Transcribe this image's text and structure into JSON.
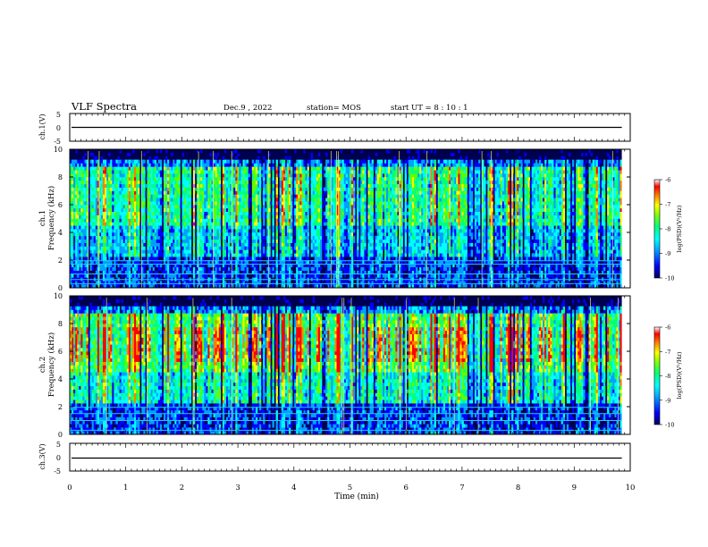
{
  "header": {
    "title": "VLF Spectra",
    "date": "Dec.9 , 2022",
    "station": "station= MOS",
    "start": "start UT = 8 : 10 : 1"
  },
  "chart_data": [
    {
      "type": "line",
      "ylabel": "ch.1(V)",
      "yticks": [
        "5",
        "0",
        "-5"
      ],
      "ylim": [
        -5,
        5
      ],
      "x": [
        0,
        9.85
      ],
      "y": [
        0,
        0
      ]
    },
    {
      "type": "heatmap",
      "ylabel_line1": "ch.1",
      "ylabel_line2": "Frequency (kHz)",
      "ylim": [
        0,
        10
      ],
      "yticks": [
        "0",
        "2",
        "4",
        "6",
        "8",
        "10"
      ],
      "colorbar": {
        "label": "log(PSD)(V²/Hz)",
        "ticks": [
          "-6",
          "-7",
          "-8",
          "-9",
          "-10"
        ],
        "range": [
          -10,
          -6
        ]
      },
      "interference_lines_khz": [
        0.3,
        0.6,
        1.0,
        1.7,
        1.95
      ]
    },
    {
      "type": "heatmap",
      "ylabel_line1": "ch.2",
      "ylabel_line2": "Frequency (kHz)",
      "ylim": [
        0,
        10
      ],
      "yticks": [
        "0",
        "2",
        "4",
        "6",
        "8",
        "10"
      ],
      "colorbar": {
        "label": "log(PSD)(V²/Hz)",
        "ticks": [
          "-6",
          "-7",
          "-8",
          "-9",
          "-10"
        ],
        "range": [
          -10,
          -6
        ]
      },
      "interference_lines_khz": [
        0.3,
        1.0,
        1.5,
        1.95
      ]
    },
    {
      "type": "line",
      "ylabel": "ch.3(V)",
      "yticks": [
        "5",
        "0",
        "-5"
      ],
      "ylim": [
        -5,
        5
      ],
      "x": [
        0,
        9.85
      ],
      "y": [
        0,
        0
      ]
    }
  ],
  "xaxis": {
    "label": "Time (min)",
    "ticks": [
      "0",
      "1",
      "2",
      "3",
      "4",
      "5",
      "6",
      "7",
      "8",
      "9",
      "10"
    ],
    "xlim": [
      0,
      10
    ],
    "data_end": 9.85
  },
  "colormap": [
    "#000080",
    "#0000ff",
    "#00a0ff",
    "#00ffff",
    "#00ff80",
    "#60ff00",
    "#ffff00",
    "#ff8000",
    "#ff0000",
    "#ffffff"
  ]
}
